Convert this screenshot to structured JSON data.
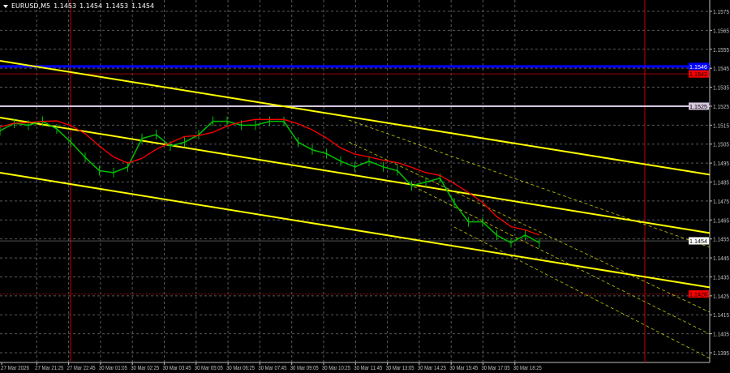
{
  "header": {
    "symbol": "EURUSD,M5",
    "open": "1.1453",
    "high": "1.1454",
    "low": "1.1453",
    "close": "1.1454"
  },
  "chart_data": {
    "type": "line",
    "title": "EURUSD,M5",
    "ylim": [
      1.1392,
      1.158
    ],
    "y_ticks": [
      "1.1575",
      "1.1565",
      "1.1555",
      "1.1545",
      "1.1535",
      "1.1525",
      "1.1515",
      "1.1505",
      "1.1495",
      "1.1485",
      "1.1475",
      "1.1465",
      "1.1455",
      "1.1445",
      "1.1435",
      "1.1425",
      "1.1415",
      "1.1405",
      "1.1395"
    ],
    "x_ticks": [
      "27 Mar 2026",
      "27 Mar 21:25",
      "27 Mar 22:45",
      "30 Mar 01:05",
      "30 Mar 02:25",
      "30 Mar 03:45",
      "30 Mar 05:05",
      "30 Mar 06:25",
      "30 Mar 07:45",
      "30 Mar 09:05",
      "30 Mar 10:25",
      "30 Mar 11:45",
      "30 Mar 13:05",
      "30 Mar 14:25",
      "30 Mar 15:45",
      "30 Mar 17:05",
      "30 Mar 18:25"
    ],
    "grid": true,
    "series": [
      {
        "values": [
          1.1512,
          1.1516,
          1.1515,
          1.1517,
          1.1513,
          1.1506,
          1.1498,
          1.1491,
          1.149,
          1.1493,
          1.1508,
          1.151,
          1.1504,
          1.1506,
          1.151,
          1.1517,
          1.1517,
          1.1515,
          1.1515,
          1.1517,
          1.1517,
          1.1506,
          1.1502,
          1.15,
          1.1496,
          1.1493,
          1.1496,
          1.1493,
          1.1491,
          1.1483,
          1.1485,
          1.1487,
          1.1474,
          1.1464,
          1.1464,
          1.1457,
          1.1453,
          1.1457,
          1.1453
        ],
        "color": "#00c000"
      }
    ],
    "price_labels": [
      {
        "text": "1.1546",
        "price": 1.1546,
        "color": "#0000ff",
        "text_color": "#ffffff"
      },
      {
        "text": "1.1542",
        "price": 1.1542,
        "color": "#ff0000",
        "text_color": "#000000"
      },
      {
        "text": "1.1525",
        "price": 1.1525,
        "color": "#d8c8e0",
        "text_color": "#000000"
      },
      {
        "text": "1.1454",
        "price": 1.1454,
        "color": "#ffffff",
        "text_color": "#000000"
      },
      {
        "text": "1.1426",
        "price": 1.1426,
        "color": "#ff0000",
        "text_color": "#000000"
      }
    ],
    "colors": {
      "candles": "#00c000",
      "ma": "#ff0000",
      "trend": "#ffff00",
      "grid": "#5a5a5a",
      "axis": "#c0c0c0"
    }
  }
}
